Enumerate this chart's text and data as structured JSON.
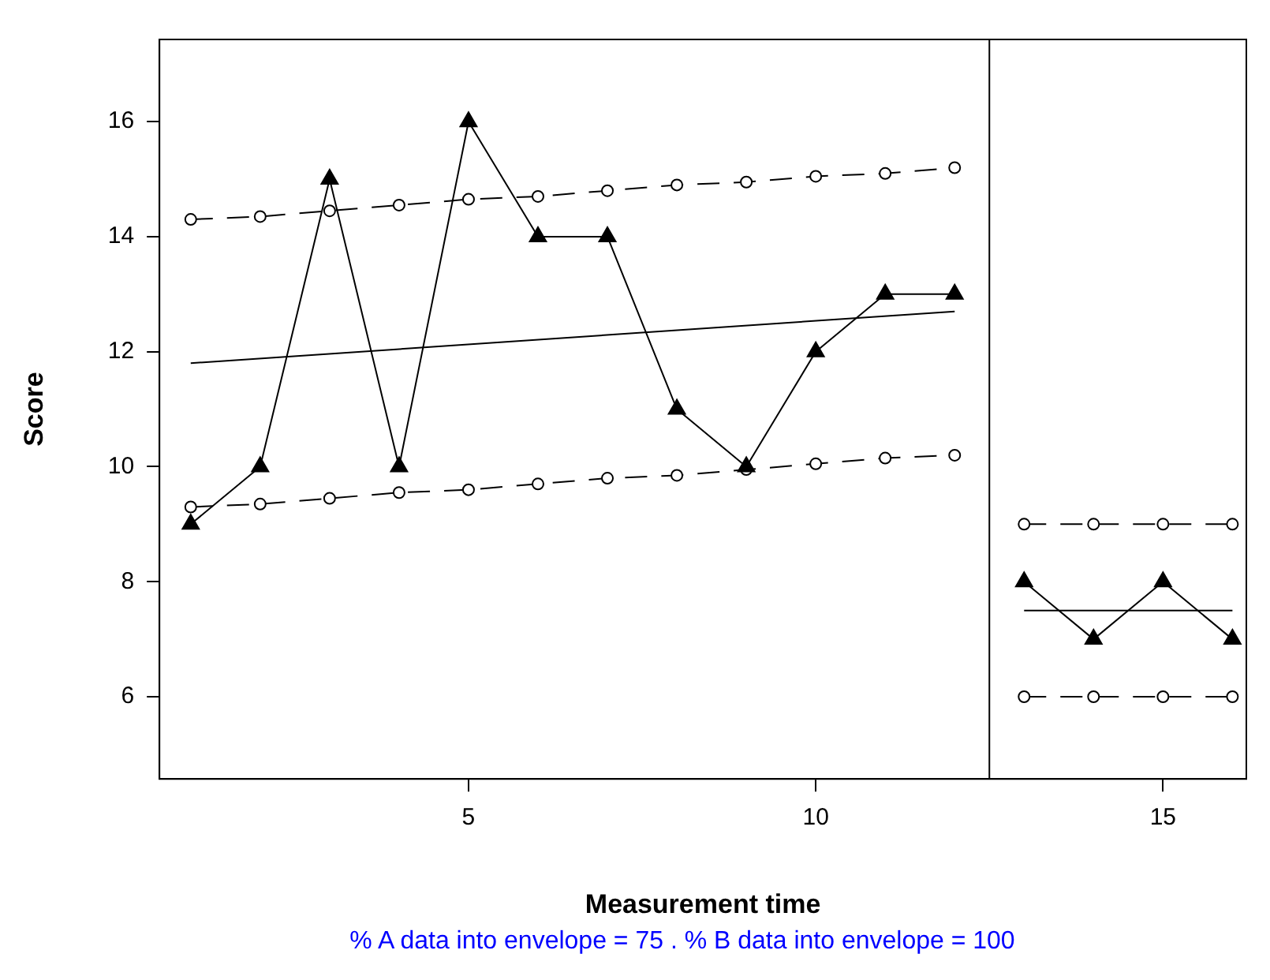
{
  "chart_data": {
    "type": "line",
    "xlabel": "Measurement time",
    "ylabel": "Score",
    "annotations": [
      "% A data into envelope = 75 . % B data into envelope =  100"
    ],
    "xlim": [
      0.55,
      16.2
    ],
    "xticks": [
      5,
      10,
      15
    ],
    "ylim": [
      4.57,
      17.43
    ],
    "yticks": [
      6,
      8,
      10,
      12,
      14,
      16
    ],
    "grid": false,
    "legend": false,
    "ref_lines": [
      {
        "axis": "x",
        "value": 12.5,
        "color": "#000000"
      }
    ],
    "series": [
      {
        "color": "#000000",
        "marker": "triangle",
        "x": [
          1,
          2,
          3,
          4,
          5,
          6,
          7,
          8,
          9,
          10,
          11,
          12
        ],
        "values": [
          9,
          10,
          15,
          10,
          16,
          14,
          14,
          11,
          10,
          12,
          13,
          13
        ]
      },
      {
        "color": "#000000",
        "marker": "none",
        "x": [
          1,
          12
        ],
        "values": [
          11.8,
          12.7
        ]
      },
      {
        "color": "#000000",
        "marker": "circle",
        "line_style": "dashed",
        "x": [
          1,
          2,
          3,
          4,
          5,
          6,
          7,
          8,
          9,
          10,
          11,
          12
        ],
        "values": [
          14.3,
          14.35,
          14.45,
          14.55,
          14.65,
          14.7,
          14.8,
          14.9,
          14.95,
          15.05,
          15.1,
          15.2
        ]
      },
      {
        "color": "#000000",
        "marker": "circle",
        "line_style": "dashed",
        "x": [
          1,
          2,
          3,
          4,
          5,
          6,
          7,
          8,
          9,
          10,
          11,
          12
        ],
        "values": [
          9.3,
          9.35,
          9.45,
          9.55,
          9.6,
          9.7,
          9.8,
          9.85,
          9.95,
          10.05,
          10.15,
          10.2
        ]
      },
      {
        "color": "#000000",
        "marker": "triangle",
        "x": [
          13,
          14,
          15,
          16
        ],
        "values": [
          8,
          7,
          8,
          7
        ]
      },
      {
        "color": "#000000",
        "marker": "none",
        "x": [
          13,
          16
        ],
        "values": [
          7.5,
          7.5
        ]
      },
      {
        "color": "#000000",
        "marker": "circle",
        "line_style": "dashed",
        "x": [
          13,
          14,
          15,
          16
        ],
        "values": [
          9,
          9,
          9,
          9
        ]
      },
      {
        "color": "#000000",
        "marker": "circle",
        "line_style": "dashed",
        "x": [
          13,
          14,
          15,
          16
        ],
        "values": [
          6,
          6,
          6,
          6
        ]
      }
    ]
  }
}
